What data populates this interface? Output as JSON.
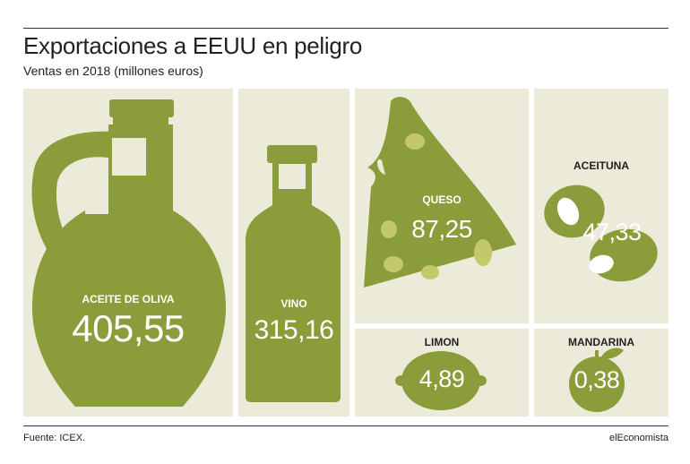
{
  "header": {
    "title": "Exportaciones a EEUU en peligro",
    "subtitle": "Ventas en 2018 (millones euros)"
  },
  "chart_data": {
    "type": "table",
    "title": "Exportaciones a EEUU en peligro",
    "subtitle": "Ventas en 2018 (millones euros)",
    "categories": [
      "ACEITE DE OLIVA",
      "VINO",
      "QUESO",
      "ACEITUNA",
      "LIMON",
      "MANDARINA"
    ],
    "values": [
      405.55,
      315.16,
      87.25,
      47.33,
      4.89,
      0.38
    ],
    "value_labels": [
      "405,55",
      "315,16",
      "87,25",
      "47,33",
      "4,89",
      "0,38"
    ],
    "icons": [
      "oil-jug-icon",
      "wine-bottle-icon",
      "cheese-icon",
      "olive-icon",
      "lemon-icon",
      "mandarin-icon"
    ]
  },
  "colors": {
    "panel": "#ecead9",
    "shape": "#8b9c3a",
    "spot": "#c3c96a"
  },
  "footer": {
    "source": "Fuente: ICEX.",
    "brand": "elEconomista"
  }
}
